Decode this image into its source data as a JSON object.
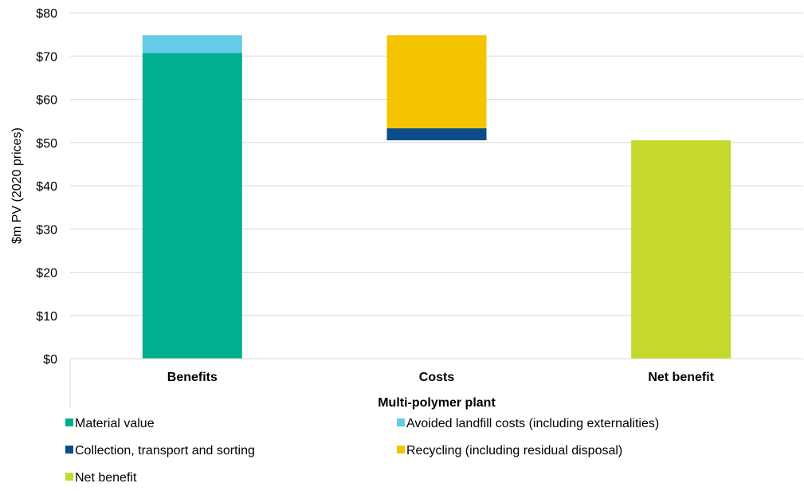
{
  "chart_data": {
    "type": "bar",
    "stacked": true,
    "waterfall": true,
    "categories": [
      "Benefits",
      "Costs",
      "Net benefit"
    ],
    "xlabel": "Multi-polymer plant",
    "ylabel": "$m PV (2020 prices)",
    "ylim": [
      0,
      80
    ],
    "yticks": [
      "$0",
      "$10",
      "$20",
      "$30",
      "$40",
      "$50",
      "$60",
      "$70",
      "$80"
    ],
    "grid": true,
    "legend_position": "bottom",
    "series": [
      {
        "name": "Material value",
        "color": "#00AF8F",
        "values": [
          70.7,
          null,
          null
        ]
      },
      {
        "name": "Avoided landfill costs (including externalities)",
        "color": "#64CBE8",
        "values": [
          4.1,
          null,
          null
        ]
      },
      {
        "name": "Collection, transport and sorting",
        "color": "#0D4C8B",
        "values": [
          null,
          2.8,
          null
        ]
      },
      {
        "name": "Recycling (including residual disposal)",
        "color": "#F5C400",
        "values": [
          null,
          21.5,
          null
        ]
      },
      {
        "name": "Net benefit",
        "color": "#C5D92D",
        "values": [
          null,
          null,
          50.5
        ]
      }
    ],
    "cost_base": 50.5
  }
}
